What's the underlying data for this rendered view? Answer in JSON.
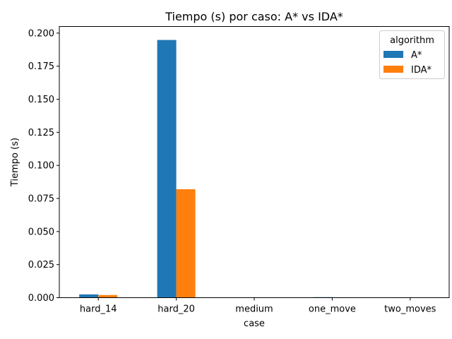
{
  "chart_data": {
    "type": "bar",
    "title": "Tiempo (s) por caso: A* vs IDA*",
    "xlabel": "case",
    "ylabel": "Tiempo (s)",
    "categories": [
      "hard_14",
      "hard_20",
      "medium",
      "one_move",
      "two_moves"
    ],
    "series": [
      {
        "name": "A*",
        "color": "#1f77b4",
        "values": [
          0.0025,
          0.1948,
          0.0001,
          0.0004,
          0.0003
        ]
      },
      {
        "name": "IDA*",
        "color": "#ff7f0e",
        "values": [
          0.002,
          0.082,
          0.0001,
          0.0003,
          0.0001
        ]
      }
    ],
    "ylim": [
      0,
      0.205
    ],
    "yticks": [
      0.0,
      0.025,
      0.05,
      0.075,
      0.1,
      0.125,
      0.15,
      0.175,
      0.2
    ],
    "ytick_labels": [
      "0.000",
      "0.025",
      "0.050",
      "0.075",
      "0.100",
      "0.125",
      "0.150",
      "0.175",
      "0.200"
    ],
    "legend": {
      "title": "algorithm",
      "placement": "top-right"
    },
    "grid": false
  }
}
